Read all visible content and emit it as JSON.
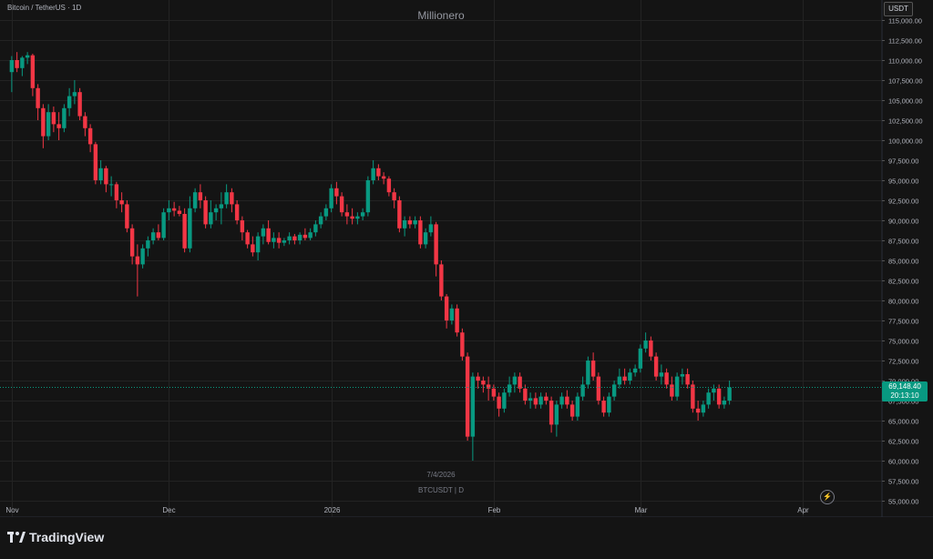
{
  "header": {
    "symbol_title": "Bitcoin / TetherUS · 1D",
    "watermark": "Millionero",
    "currency": "USDT"
  },
  "footer": {
    "date": "7/4/2026",
    "symbol_interval": "BTCUSDT | D",
    "brand": "TradingView"
  },
  "last_price": {
    "price": "69,148.40",
    "countdown": "20:13:10"
  },
  "colors": {
    "up": "#089981",
    "down": "#f23645",
    "background": "#141414",
    "grid": "#232323"
  },
  "chart_data": {
    "type": "candlestick",
    "ylim": [
      55000,
      115000
    ],
    "y_ticks": [
      "115,000.00",
      "112,500.00",
      "110,000.00",
      "107,500.00",
      "105,000.00",
      "102,500.00",
      "100,000.00",
      "97,500.00",
      "95,000.00",
      "92,500.00",
      "90,000.00",
      "87,500.00",
      "85,000.00",
      "82,500.00",
      "80,000.00",
      "77,500.00",
      "75,000.00",
      "72,500.00",
      "70,000.00",
      "67,500.00",
      "65,000.00",
      "62,500.00",
      "60,000.00",
      "57,500.00",
      "55,000.00"
    ],
    "x_ticks": [
      {
        "label": "Nov",
        "index": 0
      },
      {
        "label": "Dec",
        "index": 30
      },
      {
        "label": "2026",
        "index": 61
      },
      {
        "label": "Feb",
        "index": 92
      },
      {
        "label": "Mar",
        "index": 120
      },
      {
        "label": "Apr",
        "index": 151
      }
    ],
    "grid": true,
    "candles": [
      {
        "o": 108500,
        "h": 110500,
        "l": 106000,
        "c": 110000
      },
      {
        "o": 110000,
        "h": 111000,
        "l": 108500,
        "c": 109000
      },
      {
        "o": 109000,
        "h": 110500,
        "l": 108000,
        "c": 110300
      },
      {
        "o": 110300,
        "h": 111000,
        "l": 109500,
        "c": 110600
      },
      {
        "o": 110600,
        "h": 110800,
        "l": 105500,
        "c": 106500
      },
      {
        "o": 106500,
        "h": 107000,
        "l": 102500,
        "c": 104000
      },
      {
        "o": 104000,
        "h": 104500,
        "l": 99000,
        "c": 100500
      },
      {
        "o": 100500,
        "h": 104500,
        "l": 100000,
        "c": 103500
      },
      {
        "o": 103500,
        "h": 104200,
        "l": 101000,
        "c": 102000
      },
      {
        "o": 102000,
        "h": 103500,
        "l": 100000,
        "c": 101500
      },
      {
        "o": 101500,
        "h": 104500,
        "l": 101000,
        "c": 104000
      },
      {
        "o": 104000,
        "h": 106500,
        "l": 103000,
        "c": 105500
      },
      {
        "o": 105500,
        "h": 107500,
        "l": 104500,
        "c": 106000
      },
      {
        "o": 106000,
        "h": 106500,
        "l": 102500,
        "c": 103000
      },
      {
        "o": 103000,
        "h": 103500,
        "l": 100500,
        "c": 101500
      },
      {
        "o": 101500,
        "h": 102000,
        "l": 98500,
        "c": 99500
      },
      {
        "o": 99500,
        "h": 99800,
        "l": 94500,
        "c": 95000
      },
      {
        "o": 95000,
        "h": 97500,
        "l": 94500,
        "c": 96500
      },
      {
        "o": 96500,
        "h": 96800,
        "l": 93500,
        "c": 94500
      },
      {
        "o": 94500,
        "h": 95500,
        "l": 93000,
        "c": 94500
      },
      {
        "o": 94500,
        "h": 94800,
        "l": 91500,
        "c": 92500
      },
      {
        "o": 92500,
        "h": 93500,
        "l": 91000,
        "c": 92000
      },
      {
        "o": 92000,
        "h": 92500,
        "l": 88500,
        "c": 89000
      },
      {
        "o": 89000,
        "h": 89500,
        "l": 84500,
        "c": 85500
      },
      {
        "o": 85500,
        "h": 87000,
        "l": 80500,
        "c": 84500
      },
      {
        "o": 84500,
        "h": 87000,
        "l": 84000,
        "c": 86500
      },
      {
        "o": 86500,
        "h": 88000,
        "l": 85500,
        "c": 87500
      },
      {
        "o": 87500,
        "h": 89000,
        "l": 87000,
        "c": 88500
      },
      {
        "o": 88500,
        "h": 89500,
        "l": 87500,
        "c": 87800
      },
      {
        "o": 87800,
        "h": 91500,
        "l": 87500,
        "c": 91000
      },
      {
        "o": 91000,
        "h": 92500,
        "l": 90000,
        "c": 91500
      },
      {
        "o": 91500,
        "h": 92300,
        "l": 90500,
        "c": 91200
      },
      {
        "o": 91200,
        "h": 91800,
        "l": 90500,
        "c": 90800
      },
      {
        "o": 90800,
        "h": 91500,
        "l": 86000,
        "c": 86500
      },
      {
        "o": 86500,
        "h": 93000,
        "l": 86000,
        "c": 91500
      },
      {
        "o": 91500,
        "h": 94000,
        "l": 91000,
        "c": 93500
      },
      {
        "o": 93500,
        "h": 94500,
        "l": 91500,
        "c": 92500
      },
      {
        "o": 92500,
        "h": 93000,
        "l": 89000,
        "c": 89500
      },
      {
        "o": 89500,
        "h": 92500,
        "l": 89000,
        "c": 91000
      },
      {
        "o": 91000,
        "h": 92000,
        "l": 90000,
        "c": 91500
      },
      {
        "o": 91500,
        "h": 93500,
        "l": 89500,
        "c": 92000
      },
      {
        "o": 92000,
        "h": 94500,
        "l": 91500,
        "c": 93500
      },
      {
        "o": 93500,
        "h": 94000,
        "l": 91000,
        "c": 92000
      },
      {
        "o": 92000,
        "h": 92500,
        "l": 89500,
        "c": 90000
      },
      {
        "o": 90000,
        "h": 90500,
        "l": 87500,
        "c": 88500
      },
      {
        "o": 88500,
        "h": 88800,
        "l": 86500,
        "c": 87000
      },
      {
        "o": 87000,
        "h": 88000,
        "l": 85500,
        "c": 86000
      },
      {
        "o": 86000,
        "h": 88500,
        "l": 85000,
        "c": 88000
      },
      {
        "o": 88000,
        "h": 89500,
        "l": 87000,
        "c": 89000
      },
      {
        "o": 89000,
        "h": 90000,
        "l": 87000,
        "c": 87300
      },
      {
        "o": 87300,
        "h": 88500,
        "l": 86500,
        "c": 87800
      },
      {
        "o": 87800,
        "h": 88500,
        "l": 86500,
        "c": 87200
      },
      {
        "o": 87200,
        "h": 87800,
        "l": 86800,
        "c": 87500
      },
      {
        "o": 87500,
        "h": 88500,
        "l": 87000,
        "c": 88000
      },
      {
        "o": 88000,
        "h": 88300,
        "l": 87000,
        "c": 87500
      },
      {
        "o": 87500,
        "h": 88500,
        "l": 87000,
        "c": 88200
      },
      {
        "o": 88200,
        "h": 89000,
        "l": 87500,
        "c": 87800
      },
      {
        "o": 87800,
        "h": 89000,
        "l": 87500,
        "c": 88500
      },
      {
        "o": 88500,
        "h": 90000,
        "l": 88000,
        "c": 89500
      },
      {
        "o": 89500,
        "h": 91000,
        "l": 89000,
        "c": 90500
      },
      {
        "o": 90500,
        "h": 92000,
        "l": 90000,
        "c": 91500
      },
      {
        "o": 91500,
        "h": 94500,
        "l": 91000,
        "c": 94000
      },
      {
        "o": 94000,
        "h": 94800,
        "l": 92000,
        "c": 93000
      },
      {
        "o": 93000,
        "h": 93500,
        "l": 90500,
        "c": 91000
      },
      {
        "o": 91000,
        "h": 92000,
        "l": 89500,
        "c": 90500
      },
      {
        "o": 90500,
        "h": 91500,
        "l": 89500,
        "c": 90200
      },
      {
        "o": 90200,
        "h": 91000,
        "l": 89500,
        "c": 90500
      },
      {
        "o": 90500,
        "h": 91500,
        "l": 90000,
        "c": 91000
      },
      {
        "o": 91000,
        "h": 95500,
        "l": 90500,
        "c": 95000
      },
      {
        "o": 95000,
        "h": 97500,
        "l": 94500,
        "c": 96500
      },
      {
        "o": 96500,
        "h": 97000,
        "l": 95000,
        "c": 95500
      },
      {
        "o": 95500,
        "h": 96000,
        "l": 94500,
        "c": 95200
      },
      {
        "o": 95200,
        "h": 95500,
        "l": 93000,
        "c": 93500
      },
      {
        "o": 93500,
        "h": 94000,
        "l": 91500,
        "c": 92500
      },
      {
        "o": 92500,
        "h": 93000,
        "l": 88500,
        "c": 89000
      },
      {
        "o": 89000,
        "h": 90500,
        "l": 88000,
        "c": 90000
      },
      {
        "o": 90000,
        "h": 90500,
        "l": 89000,
        "c": 89500
      },
      {
        "o": 89500,
        "h": 90500,
        "l": 89000,
        "c": 90000
      },
      {
        "o": 90000,
        "h": 90500,
        "l": 86500,
        "c": 87000
      },
      {
        "o": 87000,
        "h": 89000,
        "l": 86500,
        "c": 88500
      },
      {
        "o": 88500,
        "h": 90500,
        "l": 88000,
        "c": 89500
      },
      {
        "o": 89500,
        "h": 89800,
        "l": 83000,
        "c": 84500
      },
      {
        "o": 84500,
        "h": 85000,
        "l": 80000,
        "c": 80500
      },
      {
        "o": 80500,
        "h": 80800,
        "l": 76500,
        "c": 77500
      },
      {
        "o": 77500,
        "h": 79500,
        "l": 77000,
        "c": 79000
      },
      {
        "o": 79000,
        "h": 79500,
        "l": 75500,
        "c": 76000
      },
      {
        "o": 76000,
        "h": 76500,
        "l": 72500,
        "c": 73000
      },
      {
        "o": 73000,
        "h": 73500,
        "l": 62500,
        "c": 63000
      },
      {
        "o": 63000,
        "h": 71000,
        "l": 60000,
        "c": 70500
      },
      {
        "o": 70500,
        "h": 71000,
        "l": 69000,
        "c": 70000
      },
      {
        "o": 70000,
        "h": 70500,
        "l": 68500,
        "c": 69500
      },
      {
        "o": 69500,
        "h": 70500,
        "l": 67500,
        "c": 69000
      },
      {
        "o": 69000,
        "h": 69500,
        "l": 67500,
        "c": 68000
      },
      {
        "o": 68000,
        "h": 68500,
        "l": 65500,
        "c": 66500
      },
      {
        "o": 66500,
        "h": 69000,
        "l": 66000,
        "c": 68500
      },
      {
        "o": 68500,
        "h": 70500,
        "l": 68000,
        "c": 69500
      },
      {
        "o": 69500,
        "h": 71000,
        "l": 68500,
        "c": 70500
      },
      {
        "o": 70500,
        "h": 71000,
        "l": 68500,
        "c": 69000
      },
      {
        "o": 69000,
        "h": 69500,
        "l": 67000,
        "c": 67500
      },
      {
        "o": 67500,
        "h": 68500,
        "l": 66500,
        "c": 67800
      },
      {
        "o": 67800,
        "h": 68500,
        "l": 66500,
        "c": 67000
      },
      {
        "o": 67000,
        "h": 68500,
        "l": 66500,
        "c": 68000
      },
      {
        "o": 68000,
        "h": 68500,
        "l": 67000,
        "c": 67500
      },
      {
        "o": 67500,
        "h": 68000,
        "l": 63500,
        "c": 64500
      },
      {
        "o": 64500,
        "h": 67500,
        "l": 63000,
        "c": 67000
      },
      {
        "o": 67000,
        "h": 68500,
        "l": 66500,
        "c": 68000
      },
      {
        "o": 68000,
        "h": 68800,
        "l": 66500,
        "c": 67000
      },
      {
        "o": 67000,
        "h": 67500,
        "l": 65000,
        "c": 65500
      },
      {
        "o": 65500,
        "h": 68500,
        "l": 65000,
        "c": 68000
      },
      {
        "o": 68000,
        "h": 70500,
        "l": 67500,
        "c": 69500
      },
      {
        "o": 69500,
        "h": 73000,
        "l": 69000,
        "c": 72500
      },
      {
        "o": 72500,
        "h": 73500,
        "l": 70000,
        "c": 70500
      },
      {
        "o": 70500,
        "h": 71000,
        "l": 67000,
        "c": 67500
      },
      {
        "o": 67500,
        "h": 68000,
        "l": 65500,
        "c": 66000
      },
      {
        "o": 66000,
        "h": 68500,
        "l": 65500,
        "c": 68000
      },
      {
        "o": 68000,
        "h": 70000,
        "l": 67500,
        "c": 69500
      },
      {
        "o": 69500,
        "h": 71500,
        "l": 69000,
        "c": 70500
      },
      {
        "o": 70500,
        "h": 71500,
        "l": 69500,
        "c": 70000
      },
      {
        "o": 70000,
        "h": 71500,
        "l": 69500,
        "c": 71000
      },
      {
        "o": 71000,
        "h": 72000,
        "l": 70500,
        "c": 71500
      },
      {
        "o": 71500,
        "h": 74500,
        "l": 71000,
        "c": 74000
      },
      {
        "o": 74000,
        "h": 76000,
        "l": 73500,
        "c": 75000
      },
      {
        "o": 75000,
        "h": 75500,
        "l": 72500,
        "c": 73000
      },
      {
        "o": 73000,
        "h": 73500,
        "l": 70000,
        "c": 70500
      },
      {
        "o": 70500,
        "h": 72000,
        "l": 69500,
        "c": 71000
      },
      {
        "o": 71000,
        "h": 71500,
        "l": 69000,
        "c": 69500
      },
      {
        "o": 69500,
        "h": 70500,
        "l": 67500,
        "c": 68000
      },
      {
        "o": 68000,
        "h": 71000,
        "l": 67500,
        "c": 70500
      },
      {
        "o": 70500,
        "h": 71500,
        "l": 69500,
        "c": 70800
      },
      {
        "o": 70800,
        "h": 71500,
        "l": 69000,
        "c": 69500
      },
      {
        "o": 69500,
        "h": 70000,
        "l": 66000,
        "c": 66500
      },
      {
        "o": 66500,
        "h": 67500,
        "l": 65000,
        "c": 66000
      },
      {
        "o": 66000,
        "h": 67500,
        "l": 65500,
        "c": 67000
      },
      {
        "o": 67000,
        "h": 69000,
        "l": 66500,
        "c": 68500
      },
      {
        "o": 68500,
        "h": 69500,
        "l": 67500,
        "c": 69000
      },
      {
        "o": 69000,
        "h": 69500,
        "l": 66500,
        "c": 67000
      },
      {
        "o": 67000,
        "h": 68000,
        "l": 66500,
        "c": 67500
      },
      {
        "o": 67500,
        "h": 70000,
        "l": 67000,
        "c": 69148.4
      }
    ]
  }
}
